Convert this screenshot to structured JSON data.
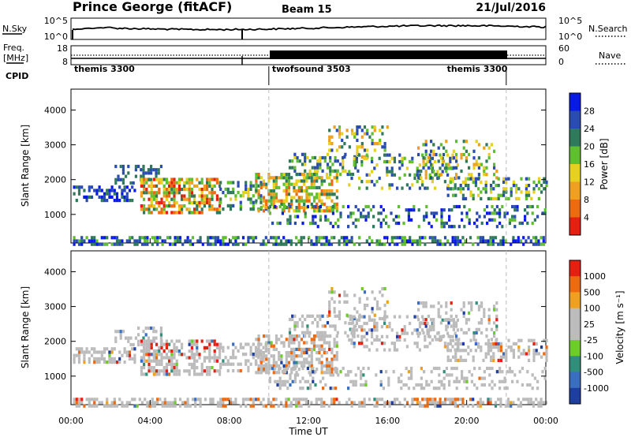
{
  "header": {
    "station": "Prince George (fitACF)",
    "beam": "Beam 15",
    "date": "21/Jul/2016"
  },
  "sky_panel": {
    "left_label": "N.Sky",
    "right_label": "N.Search",
    "left_ticks": [
      "10^5",
      "10^0"
    ],
    "right_ticks": [
      "10^5",
      "10^0"
    ]
  },
  "freq_panel": {
    "left_label_1": "Freq.",
    "left_label_2": "[MHz]",
    "right_label": "Nave",
    "left_ticks": [
      "18",
      "8"
    ],
    "right_ticks": [
      "60",
      "0"
    ]
  },
  "cpid": {
    "label": "CPID",
    "segments": [
      {
        "name": "themis 3300",
        "start_hour": 0,
        "end_hour": 10
      },
      {
        "name": "twofsound 3503",
        "start_hour": 10,
        "end_hour": 22
      },
      {
        "name": "themis 3300",
        "start_hour": 22,
        "end_hour": 24
      }
    ]
  },
  "chart_data": [
    {
      "type": "heatmap",
      "name": "power",
      "ylabel": "Slant Range [km]",
      "yticks": [
        "1000",
        "2000",
        "3000",
        "4000"
      ],
      "ylim": [
        180,
        4600
      ],
      "colorbar_label": "Power [dB]",
      "colorbar_ticks": [
        "4",
        "8",
        "12",
        "16",
        "20",
        "24",
        "28"
      ],
      "colorbar_colors": [
        "#0a1ae6",
        "#2a4bb0",
        "#2f7a5a",
        "#5fbf2e",
        "#e6d020",
        "#f0a020",
        "#ec6a10",
        "#e62010"
      ],
      "time_range_hours": [
        0,
        24
      ]
    },
    {
      "type": "heatmap",
      "name": "velocity",
      "ylabel": "Slant Range [km]",
      "yticks": [
        "1000",
        "2000",
        "3000",
        "4000"
      ],
      "ylim": [
        180,
        4600
      ],
      "colorbar_label": "Velocity [m s⁻¹]",
      "colorbar_ticks": [
        "1000",
        "500",
        "100",
        "25",
        "-25",
        "-100",
        "-500",
        "-1000"
      ],
      "colorbar_colors": [
        "#1f3fa0",
        "#3a6fc0",
        "#2f8f7a",
        "#6ccc2a",
        "#bcbcbc",
        "#bcbcbc",
        "#f0a020",
        "#ec6a10",
        "#e62010"
      ],
      "time_range_hours": [
        0,
        24
      ]
    }
  ],
  "xaxis": {
    "ticks": [
      "00:00",
      "04:00",
      "08:00",
      "12:00",
      "16:00",
      "20:00",
      "00:00"
    ],
    "label": "Time UT"
  }
}
